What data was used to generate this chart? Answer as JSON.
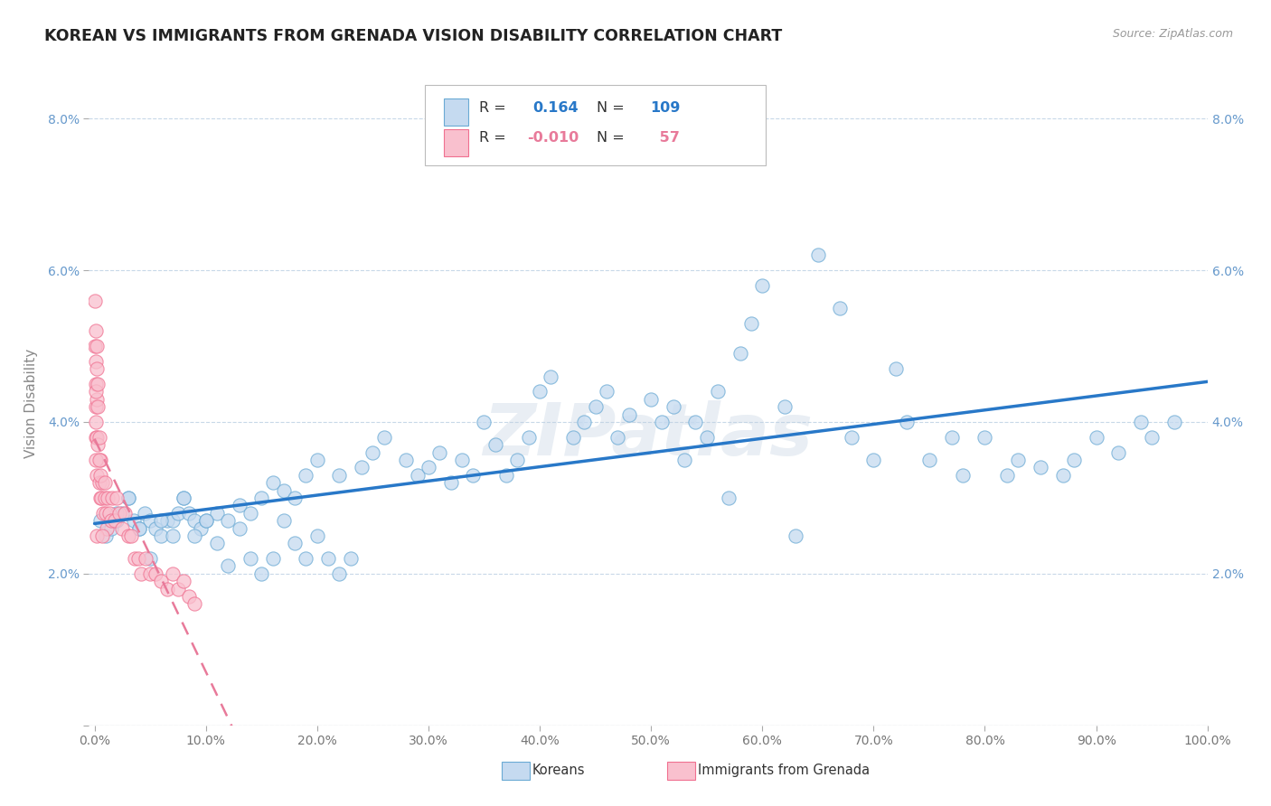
{
  "title": "KOREAN VS IMMIGRANTS FROM GRENADA VISION DISABILITY CORRELATION CHART",
  "source": "Source: ZipAtlas.com",
  "ylabel": "Vision Disability",
  "xlim": [
    -0.005,
    1.0
  ],
  "ylim": [
    0.0,
    0.085
  ],
  "r_korean": 0.164,
  "n_korean": 109,
  "r_grenada": -0.01,
  "n_grenada": 57,
  "color_korean": "#c5daf0",
  "color_grenada": "#f9c0ce",
  "edge_korean": "#6aaad4",
  "edge_grenada": "#f07090",
  "trendline_korean": "#2878c8",
  "trendline_grenada": "#e87a9a",
  "background_color": "#ffffff",
  "grid_color": "#c8d8e8",
  "watermark": "ZIPatlas",
  "korean_x": [
    0.005,
    0.01,
    0.015,
    0.02,
    0.025,
    0.03,
    0.035,
    0.04,
    0.045,
    0.05,
    0.055,
    0.06,
    0.065,
    0.07,
    0.075,
    0.08,
    0.085,
    0.09,
    0.095,
    0.1,
    0.11,
    0.12,
    0.13,
    0.14,
    0.15,
    0.16,
    0.17,
    0.18,
    0.19,
    0.2,
    0.22,
    0.24,
    0.25,
    0.26,
    0.28,
    0.29,
    0.3,
    0.31,
    0.32,
    0.33,
    0.34,
    0.35,
    0.36,
    0.37,
    0.38,
    0.39,
    0.4,
    0.41,
    0.43,
    0.44,
    0.45,
    0.46,
    0.47,
    0.48,
    0.5,
    0.51,
    0.52,
    0.53,
    0.54,
    0.55,
    0.56,
    0.57,
    0.58,
    0.59,
    0.6,
    0.62,
    0.63,
    0.65,
    0.67,
    0.68,
    0.7,
    0.72,
    0.73,
    0.75,
    0.77,
    0.78,
    0.8,
    0.82,
    0.83,
    0.85,
    0.87,
    0.88,
    0.9,
    0.92,
    0.94,
    0.95,
    0.97,
    0.02,
    0.03,
    0.04,
    0.05,
    0.06,
    0.07,
    0.08,
    0.09,
    0.1,
    0.11,
    0.12,
    0.13,
    0.14,
    0.15,
    0.16,
    0.17,
    0.18,
    0.19,
    0.2,
    0.21,
    0.22,
    0.23
  ],
  "korean_y": [
    0.027,
    0.025,
    0.026,
    0.027,
    0.028,
    0.03,
    0.027,
    0.026,
    0.028,
    0.027,
    0.026,
    0.025,
    0.027,
    0.027,
    0.028,
    0.03,
    0.028,
    0.027,
    0.026,
    0.027,
    0.028,
    0.027,
    0.029,
    0.028,
    0.03,
    0.032,
    0.031,
    0.03,
    0.033,
    0.035,
    0.033,
    0.034,
    0.036,
    0.038,
    0.035,
    0.033,
    0.034,
    0.036,
    0.032,
    0.035,
    0.033,
    0.04,
    0.037,
    0.033,
    0.035,
    0.038,
    0.044,
    0.046,
    0.038,
    0.04,
    0.042,
    0.044,
    0.038,
    0.041,
    0.043,
    0.04,
    0.042,
    0.035,
    0.04,
    0.038,
    0.044,
    0.03,
    0.049,
    0.053,
    0.058,
    0.042,
    0.025,
    0.062,
    0.055,
    0.038,
    0.035,
    0.047,
    0.04,
    0.035,
    0.038,
    0.033,
    0.038,
    0.033,
    0.035,
    0.034,
    0.033,
    0.035,
    0.038,
    0.036,
    0.04,
    0.038,
    0.04,
    0.028,
    0.03,
    0.026,
    0.022,
    0.027,
    0.025,
    0.03,
    0.025,
    0.027,
    0.024,
    0.021,
    0.026,
    0.022,
    0.02,
    0.022,
    0.027,
    0.024,
    0.022,
    0.025,
    0.022,
    0.02,
    0.022
  ],
  "grenada_x": [
    0.0005,
    0.001,
    0.001,
    0.001,
    0.001,
    0.001,
    0.001,
    0.002,
    0.002,
    0.002,
    0.002,
    0.003,
    0.003,
    0.004,
    0.004,
    0.005,
    0.005,
    0.006,
    0.007,
    0.008,
    0.009,
    0.01,
    0.011,
    0.012,
    0.013,
    0.015,
    0.016,
    0.018,
    0.02,
    0.022,
    0.025,
    0.027,
    0.03,
    0.033,
    0.036,
    0.039,
    0.042,
    0.046,
    0.05,
    0.055,
    0.06,
    0.065,
    0.07,
    0.075,
    0.08,
    0.085,
    0.09,
    0.0005,
    0.001,
    0.001,
    0.002,
    0.002,
    0.003,
    0.004,
    0.005,
    0.007,
    0.009
  ],
  "grenada_y": [
    0.05,
    0.052,
    0.048,
    0.045,
    0.042,
    0.04,
    0.038,
    0.047,
    0.043,
    0.038,
    0.033,
    0.042,
    0.037,
    0.038,
    0.032,
    0.035,
    0.03,
    0.03,
    0.032,
    0.028,
    0.03,
    0.028,
    0.026,
    0.03,
    0.028,
    0.027,
    0.03,
    0.027,
    0.03,
    0.028,
    0.026,
    0.028,
    0.025,
    0.025,
    0.022,
    0.022,
    0.02,
    0.022,
    0.02,
    0.02,
    0.019,
    0.018,
    0.02,
    0.018,
    0.019,
    0.017,
    0.016,
    0.056,
    0.044,
    0.035,
    0.05,
    0.025,
    0.045,
    0.035,
    0.033,
    0.025,
    0.032
  ],
  "xticks": [
    0.0,
    0.1,
    0.2,
    0.3,
    0.4,
    0.5,
    0.6,
    0.7,
    0.8,
    0.9,
    1.0
  ],
  "xticklabels": [
    "0.0%",
    "10.0%",
    "20.0%",
    "30.0%",
    "40.0%",
    "50.0%",
    "60.0%",
    "70.0%",
    "80.0%",
    "90.0%",
    "100.0%"
  ],
  "yticks": [
    0.0,
    0.02,
    0.04,
    0.06,
    0.08
  ],
  "yticklabels": [
    "",
    "2.0%",
    "4.0%",
    "6.0%",
    "8.0%"
  ],
  "legend_label_korean": "R =  0.164   N = 109",
  "legend_label_grenada": "R = -0.010   N =  57"
}
